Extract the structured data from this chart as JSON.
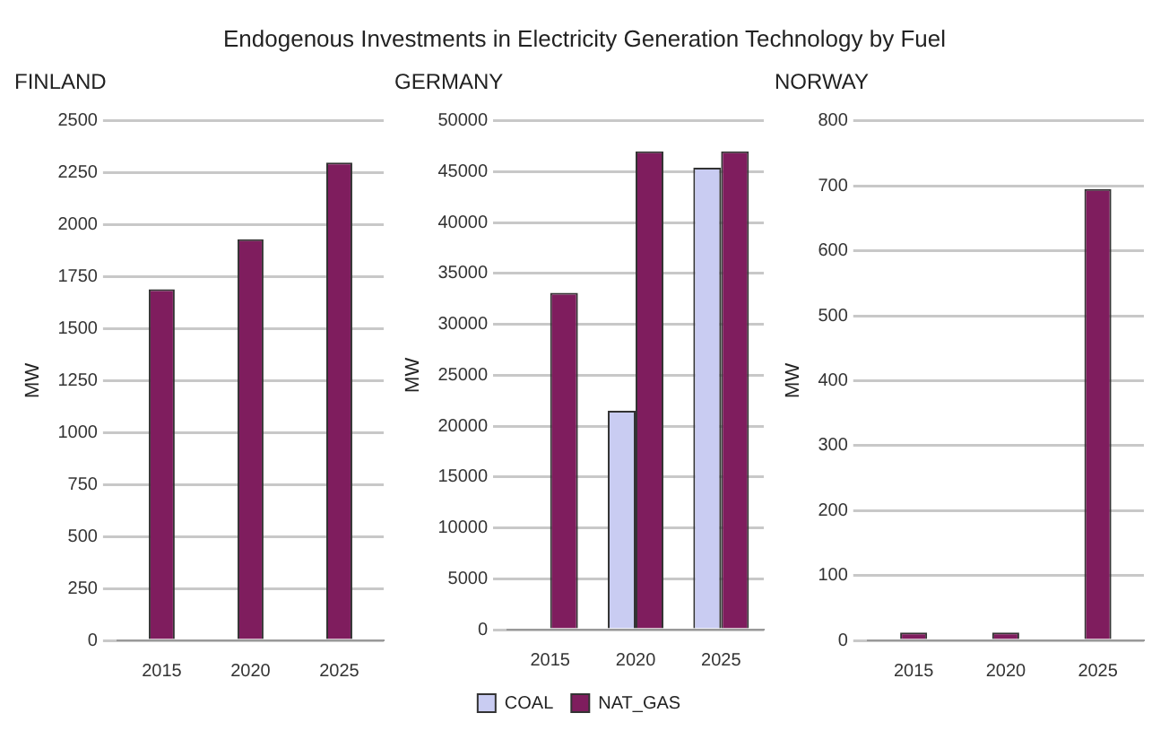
{
  "chart_data": [
    {
      "type": "bar",
      "title": "FINLAND",
      "annotations": [
        "Endogenous Investments in Electricity Generation Technology by Fuel"
      ],
      "ylabel": "MW",
      "categories": [
        "2015",
        "2020",
        "2025"
      ],
      "series": [
        {
          "color": "#7f1d5e",
          "values": [
            1690,
            1930,
            2300
          ]
        }
      ],
      "ylim": [
        0,
        2500
      ],
      "yticks": [
        0,
        250,
        500,
        750,
        1000,
        1250,
        1500,
        1750,
        2000,
        2250,
        2500
      ],
      "grid": "y",
      "legend": false
    },
    {
      "type": "bar",
      "title": "GERMANY",
      "ylabel": "MW",
      "categories": [
        "2015",
        "2020",
        "2025"
      ],
      "series": [
        {
          "name": "COAL",
          "color": "#c9ccf2",
          "values": [
            null,
            21500,
            45400
          ]
        },
        {
          "name": "NAT_GAS",
          "color": "#7f1d5e",
          "values": [
            33100,
            47000,
            47000
          ]
        }
      ],
      "ylim": [
        0,
        50000
      ],
      "yticks": [
        0,
        5000,
        10000,
        15000,
        20000,
        25000,
        30000,
        35000,
        40000,
        45000,
        50000
      ],
      "grid": "y",
      "legend": "bottom"
    },
    {
      "type": "bar",
      "title": "NORWAY",
      "ylabel": "MW",
      "categories": [
        "2015",
        "2020",
        "2025"
      ],
      "series": [
        {
          "color": "#7f1d5e",
          "values": [
            12,
            12,
            695
          ]
        }
      ],
      "ylim": [
        0,
        800
      ],
      "yticks": [
        0,
        100,
        200,
        300,
        400,
        500,
        600,
        700,
        800
      ],
      "grid": "y",
      "legend": false
    }
  ]
}
